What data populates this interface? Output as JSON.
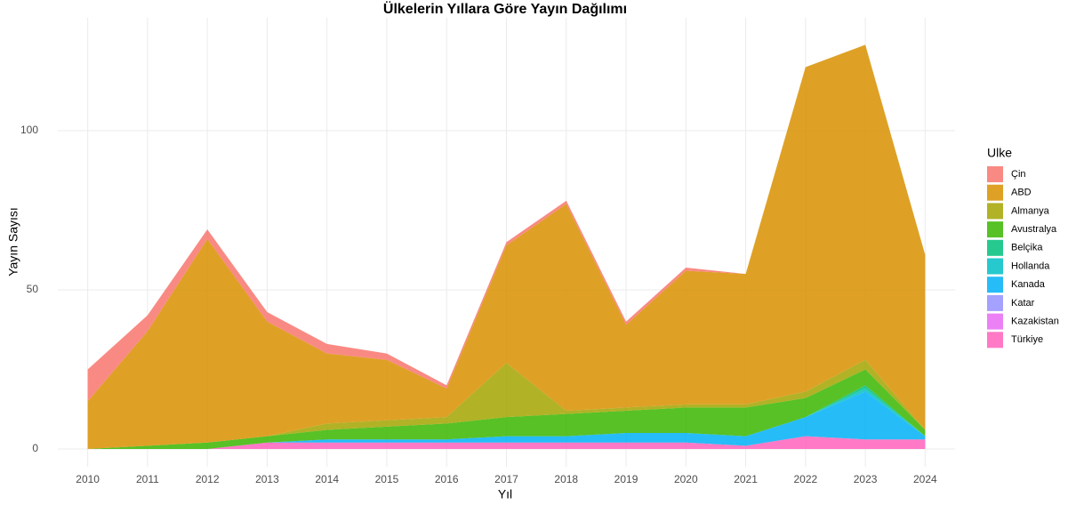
{
  "chart_data": {
    "type": "stacked_area",
    "title": "Ülkelerin Yıllara Göre Yayın Dağılımı",
    "x_label": "Yıl",
    "y_label": "Yayın Sayısı",
    "legend_title": "Ulke",
    "x": [
      2010,
      2011,
      2012,
      2013,
      2014,
      2015,
      2016,
      2017,
      2018,
      2019,
      2020,
      2021,
      2022,
      2023,
      2024
    ],
    "xlim": [
      2009.5,
      2024.5
    ],
    "xticks": [
      2010,
      2011,
      2012,
      2013,
      2014,
      2015,
      2016,
      2017,
      2018,
      2019,
      2020,
      2021,
      2022,
      2023,
      2024
    ],
    "ylim": [
      -5.6,
      135.5
    ],
    "yticks": [
      0,
      50,
      100
    ],
    "grid": true,
    "legend": "right",
    "series": [
      {
        "name": "Çin",
        "color": "#F8766D",
        "values": [
          10,
          5,
          3,
          3,
          3,
          2,
          1,
          1,
          1,
          1,
          1,
          0,
          0,
          0,
          0
        ]
      },
      {
        "name": "ABD",
        "color": "#D89000",
        "values": [
          15,
          36,
          64,
          36,
          22,
          19,
          9,
          37,
          65,
          26,
          42,
          41,
          102,
          99,
          55
        ]
      },
      {
        "name": "Almanya",
        "color": "#A3A500",
        "values": [
          0,
          0,
          0,
          0,
          2,
          2,
          2,
          17,
          1,
          1,
          1,
          1,
          2,
          3,
          0
        ]
      },
      {
        "name": "Avustralya",
        "color": "#39B600",
        "values": [
          0,
          1,
          2,
          2,
          3,
          4,
          5,
          6,
          7,
          7,
          8,
          9,
          6,
          5,
          2
        ]
      },
      {
        "name": "Belçika",
        "color": "#00BF7D",
        "values": [
          0,
          0,
          0,
          0,
          0,
          0,
          0,
          0,
          0,
          0,
          0,
          0,
          0,
          1,
          0
        ]
      },
      {
        "name": "Hollanda",
        "color": "#00BFC4",
        "values": [
          0,
          0,
          0,
          0,
          0,
          0,
          0,
          0,
          0,
          0,
          0,
          0,
          0,
          1,
          0
        ]
      },
      {
        "name": "Kanada",
        "color": "#00B0F6",
        "values": [
          0,
          0,
          0,
          0,
          1,
          1,
          1,
          2,
          2,
          3,
          3,
          3,
          6,
          15,
          1
        ]
      },
      {
        "name": "Katar",
        "color": "#9590FF",
        "values": [
          0,
          0,
          0,
          0,
          0,
          0,
          0,
          0,
          0,
          0,
          0,
          0,
          0,
          0,
          0
        ]
      },
      {
        "name": "Kazakistan",
        "color": "#E76BF3",
        "values": [
          0,
          0,
          0,
          0,
          0,
          0,
          0,
          0,
          0,
          0,
          0,
          0,
          0,
          0,
          0
        ]
      },
      {
        "name": "Türkiye",
        "color": "#FF62BC",
        "values": [
          0,
          0,
          0,
          2,
          2,
          2,
          2,
          2,
          2,
          2,
          2,
          1,
          4,
          3,
          3
        ]
      }
    ]
  }
}
